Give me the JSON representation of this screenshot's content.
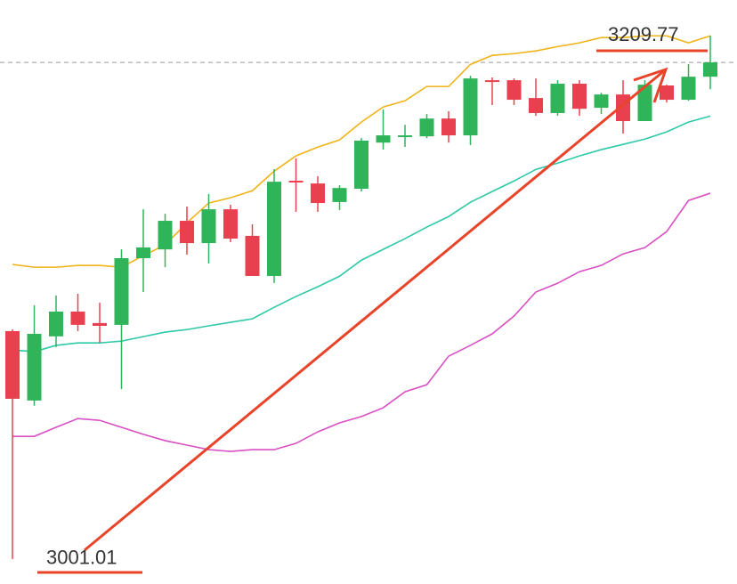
{
  "chart_data": {
    "type": "candlestick",
    "ylim": [
      2991,
      3224
    ],
    "up_color": "#2fb45a",
    "down_color": "#e8404f",
    "open": [
      3091.9,
      3064.2,
      3089.8,
      3099.7,
      3095.1,
      3094.4,
      3121.0,
      3124.5,
      3135.9,
      3127.0,
      3140.5,
      3129.9,
      3113.9,
      3151.9,
      3150.8,
      3143.4,
      3148.7,
      3167.1,
      3169.3,
      3169.6,
      3176.7,
      3170.0,
      3192.0,
      3192.0,
      3184.9,
      3178.9,
      3190.6,
      3181.0,
      3186.3,
      3175.7,
      3189.9,
      3184.2,
      3193.4
    ],
    "high": [
      3092.6,
      3102.2,
      3106.1,
      3106.8,
      3103.2,
      3124.5,
      3140.5,
      3138.7,
      3141.6,
      3146.6,
      3142.3,
      3134.5,
      3156.5,
      3160.8,
      3153.7,
      3150.1,
      3168.9,
      3180.3,
      3174.2,
      3178.5,
      3179.6,
      3193.8,
      3193.1,
      3192.7,
      3192.7,
      3192.0,
      3192.0,
      3187.0,
      3192.0,
      3192.0,
      3190.2,
      3198.4,
      3209.77
    ],
    "low": [
      3001.01,
      3062.1,
      3085.5,
      3091.9,
      3087.3,
      3068.8,
      3107.5,
      3117.4,
      3122.4,
      3118.9,
      3127.4,
      3113.9,
      3111.1,
      3139.5,
      3139.5,
      3140.2,
      3147.6,
      3164.3,
      3165.4,
      3168.9,
      3167.1,
      3166.1,
      3182.1,
      3182.1,
      3177.8,
      3177.8,
      3177.8,
      3178.5,
      3170.7,
      3175.7,
      3183.1,
      3183.8,
      3188.4
    ],
    "close": [
      3064.9,
      3090.8,
      3099.7,
      3094.4,
      3094.0,
      3121.0,
      3125.3,
      3135.9,
      3127.0,
      3140.5,
      3128.8,
      3113.9,
      3151.5,
      3151.2,
      3143.0,
      3149.0,
      3167.9,
      3170.0,
      3170.0,
      3176.7,
      3170.0,
      3192.7,
      3191.3,
      3184.2,
      3178.9,
      3190.6,
      3180.6,
      3186.3,
      3175.7,
      3190.2,
      3184.2,
      3193.4,
      3199.1
    ],
    "series": [
      {
        "color": "#f0b418",
        "values": [
          3118.5,
          3117.4,
          3117.4,
          3118.1,
          3118.1,
          3117.4,
          3122.0,
          3126.3,
          3135.1,
          3143.0,
          3145.1,
          3147.9,
          3155.7,
          3161.8,
          3165.3,
          3168.2,
          3175.3,
          3181.3,
          3183.8,
          3189.5,
          3189.5,
          3198.3,
          3201.9,
          3202.6,
          3203.7,
          3205.4,
          3206.9,
          3209.0,
          3209.0,
          3209.7,
          3209.7,
          3206.9,
          3209.7
        ]
      },
      {
        "color": "#2ec9a8",
        "values": [
          3084.4,
          3083.7,
          3086.2,
          3087.2,
          3087.2,
          3087.9,
          3089.7,
          3091.5,
          3092.5,
          3094.0,
          3095.4,
          3096.8,
          3101.4,
          3105.7,
          3109.6,
          3113.8,
          3120.2,
          3124.5,
          3128.8,
          3133.4,
          3137.6,
          3143.3,
          3147.6,
          3151.8,
          3156.4,
          3158.9,
          3161.8,
          3164.3,
          3166.4,
          3168.5,
          3171.4,
          3175.3,
          3177.7
        ]
      },
      {
        "color": "#d94fc4",
        "values": [
          3049.9,
          3049.9,
          3053.5,
          3057.0,
          3056.3,
          3053.5,
          3050.7,
          3048.2,
          3046.4,
          3044.6,
          3043.9,
          3044.6,
          3044.6,
          3047.1,
          3051.7,
          3055.3,
          3057.8,
          3061.3,
          3067.7,
          3070.5,
          3081.9,
          3086.2,
          3090.8,
          3097.9,
          3107.5,
          3111.0,
          3115.6,
          3118.1,
          3122.7,
          3125.2,
          3131.6,
          3144.0,
          3146.9
        ]
      }
    ],
    "high_label": 3209.77,
    "low_label": 3001.01
  }
}
